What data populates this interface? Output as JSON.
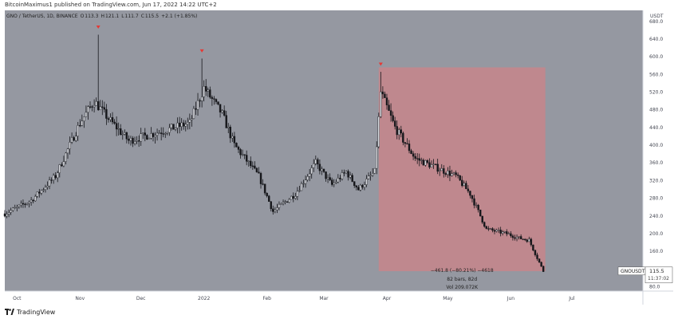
{
  "header": {
    "publisher_line": "BitcoinMaximus1 published on TradingView.com, Jun 17, 2022 14:22 UTC+2"
  },
  "legend": {
    "symbol": "GNO / TetherUS, 1D, BINANCE",
    "o_label": "O",
    "o_value": "113.3",
    "h_label": "H",
    "h_value": "121.1",
    "l_label": "L",
    "l_value": "111.7",
    "c_label": "C",
    "c_value": "115.5",
    "change": "+2.1 (+1.85%)"
  },
  "price_axis": {
    "currency": "USDT",
    "current_symbol": "GNOUSDT",
    "current_price": "115.5",
    "countdown": "11:37:02"
  },
  "measure": {
    "line1": "−461.8 (−80.21%) −4618",
    "line2": "82 bars, 82d",
    "line3": "Vol 209.072K"
  },
  "footer": {
    "brand": "TradingView"
  },
  "colors": {
    "plot_bg": "#9598a1",
    "candle": "#16171b",
    "marker": "#e53935",
    "measure_fill": "#c9848a",
    "axis_text": "#434651"
  },
  "chart_data": {
    "type": "candlestick",
    "symbol": "GNOUSDT",
    "interval": "1D",
    "x_ticks": [
      {
        "label": "Oct",
        "date": "2021-10-01"
      },
      {
        "label": "Nov",
        "date": "2021-11-01"
      },
      {
        "label": "Dec",
        "date": "2021-12-01"
      },
      {
        "label": "2022",
        "date": "2022-01-01"
      },
      {
        "label": "Feb",
        "date": "2022-02-01"
      },
      {
        "label": "Mar",
        "date": "2022-03-01"
      },
      {
        "label": "Apr",
        "date": "2022-04-01"
      },
      {
        "label": "May",
        "date": "2022-05-01"
      },
      {
        "label": "Jun",
        "date": "2022-06-01"
      },
      {
        "label": "Jul",
        "date": "2022-07-01"
      }
    ],
    "y_ticks": [
      80.0,
      160.0,
      200.0,
      240.0,
      280.0,
      320.0,
      360.0,
      400.0,
      440.0,
      480.0,
      520.0,
      560.0,
      600.0,
      640.0,
      680.0
    ],
    "y_range": [
      70,
      705
    ],
    "x_range": [
      "2021-09-25",
      "2022-08-05"
    ],
    "price_path": [
      {
        "date": "2021-09-25",
        "price": 245
      },
      {
        "date": "2021-10-08",
        "price": 275
      },
      {
        "date": "2021-10-20",
        "price": 330
      },
      {
        "date": "2021-11-01",
        "price": 450
      },
      {
        "date": "2021-11-08",
        "price": 500
      },
      {
        "date": "2021-11-15",
        "price": 460
      },
      {
        "date": "2021-11-25",
        "price": 410
      },
      {
        "date": "2021-12-10",
        "price": 430
      },
      {
        "date": "2021-12-25",
        "price": 450
      },
      {
        "date": "2022-01-01",
        "price": 530
      },
      {
        "date": "2022-01-10",
        "price": 470
      },
      {
        "date": "2022-01-16",
        "price": 400
      },
      {
        "date": "2022-01-28",
        "price": 330
      },
      {
        "date": "2022-02-04",
        "price": 250
      },
      {
        "date": "2022-02-15",
        "price": 290
      },
      {
        "date": "2022-02-25",
        "price": 360
      },
      {
        "date": "2022-03-05",
        "price": 310
      },
      {
        "date": "2022-03-12",
        "price": 340
      },
      {
        "date": "2022-03-18",
        "price": 300
      },
      {
        "date": "2022-03-26",
        "price": 340
      },
      {
        "date": "2022-03-29",
        "price": 520
      },
      {
        "date": "2022-04-05",
        "price": 440
      },
      {
        "date": "2022-04-15",
        "price": 370
      },
      {
        "date": "2022-04-25",
        "price": 350
      },
      {
        "date": "2022-05-05",
        "price": 330
      },
      {
        "date": "2022-05-12",
        "price": 290
      },
      {
        "date": "2022-05-20",
        "price": 210
      },
      {
        "date": "2022-05-30",
        "price": 200
      },
      {
        "date": "2022-06-05",
        "price": 190
      },
      {
        "date": "2022-06-10",
        "price": 185
      },
      {
        "date": "2022-06-17",
        "price": 115
      }
    ],
    "markers": [
      {
        "date": "2021-11-10",
        "price": 660
      },
      {
        "date": "2021-12-31",
        "price": 606
      },
      {
        "date": "2022-03-29",
        "price": 576
      }
    ],
    "measure_range": {
      "start_date": "2022-03-28",
      "end_date": "2022-06-18",
      "top": 576,
      "bottom": 115
    },
    "last_price": 115.5
  }
}
